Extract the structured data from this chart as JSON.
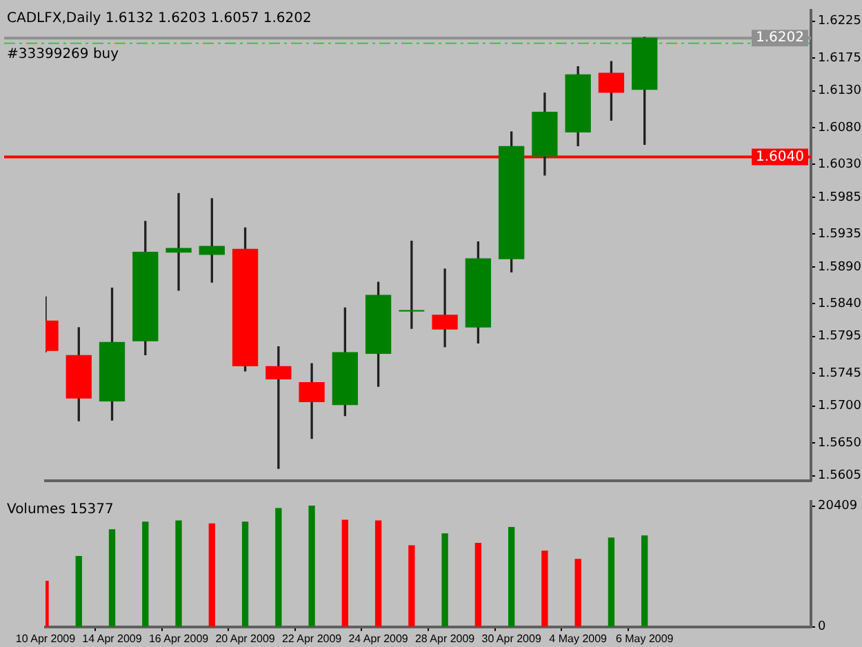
{
  "chart_data": [
    {
      "type": "candlestick",
      "title": "CADLFX,Daily 1.6132 1.6203 1.6057 1.6202",
      "categories": [
        null,
        null,
        null,
        null,
        null,
        null,
        null,
        null,
        null,
        null,
        null,
        null,
        null,
        null,
        null,
        null,
        null,
        null,
        null,
        null,
        null,
        null,
        null,
        null
      ],
      "ohlc": [
        [
          1.5816,
          1.5849,
          1.5774,
          1.5776
        ],
        [
          1.5769,
          1.5807,
          1.568,
          1.5711
        ],
        [
          1.5707,
          1.5861,
          1.5681,
          1.5787
        ],
        [
          1.5789,
          1.5952,
          1.577,
          1.591
        ],
        [
          1.591,
          1.599,
          1.5858,
          1.5915
        ],
        [
          1.5907,
          1.5983,
          1.5869,
          1.5918
        ],
        [
          1.5914,
          1.5943,
          1.5748,
          1.5755
        ],
        [
          1.5754,
          1.5781,
          1.5615,
          1.5737
        ],
        [
          1.5732,
          1.5758,
          1.5656,
          1.5706
        ],
        [
          1.5702,
          1.5834,
          1.5687,
          1.5773
        ],
        [
          1.5772,
          1.5869,
          1.5727,
          1.5851
        ],
        [
          1.583,
          1.5925,
          1.5806,
          1.583
        ],
        [
          1.5824,
          1.5887,
          1.5781,
          1.5805
        ],
        [
          1.5808,
          1.5924,
          1.5786,
          1.5901
        ],
        [
          1.5901,
          1.6074,
          1.5883,
          1.6054
        ],
        [
          1.6041,
          1.6127,
          1.6015,
          1.6101
        ],
        [
          1.6074,
          1.6163,
          1.6055,
          1.6152
        ],
        [
          1.6154,
          1.617,
          1.609,
          1.6128
        ],
        [
          1.6132,
          1.6203,
          1.6057,
          1.6202
        ],
        null,
        null,
        null,
        null,
        null
      ],
      "colors": [
        "#ff0000",
        "#ff0000",
        "#008000",
        "#008000",
        "#008000",
        "#008000",
        "#ff0000",
        "#ff0000",
        "#ff0000",
        "#008000",
        "#008000",
        "#008000",
        "#ff0000",
        "#008000",
        "#008000",
        "#008000",
        "#008000",
        "#ff0000",
        "#008000",
        null,
        null,
        null,
        null,
        null
      ],
      "ylim": [
        1.5598,
        1.624
      ],
      "yticks": [
        1.5605,
        {
          "value": 1.565,
          "label": "1.5650"
        },
        {
          "value": 1.57,
          "label": "1.5700"
        },
        1.5745,
        1.5795,
        {
          "value": 1.584,
          "label": "1.5840"
        },
        {
          "value": 1.589,
          "label": "1.5890"
        },
        1.5935,
        1.5985,
        {
          "value": 1.603,
          "label": "1.6030"
        },
        {
          "value": 1.608,
          "label": "1.6080"
        },
        {
          "value": 1.613,
          "label": "1.6130"
        },
        1.6175,
        1.6225
      ],
      "tick_labels": "y",
      "ref_lines": [
        {
          "axis": "y",
          "value": 1.6202,
          "label": "1.6202",
          "color": "#909090",
          "line_style": "solid"
        },
        {
          "axis": "y",
          "value": 1.6195,
          "label": "#33399269 buy",
          "color": "#33cc33",
          "line_style": "dashed"
        },
        {
          "axis": "y",
          "value": 1.604,
          "label": "1.6040",
          "color": "#ff0000",
          "line_style": "solid"
        }
      ]
    },
    {
      "type": "bar",
      "title": "Volumes 15377",
      "categories": [
        "10 Apr 2009",
        null,
        "14 Apr 2009",
        null,
        "16 Apr 2009",
        null,
        "20 Apr 2009",
        null,
        "22 Apr 2009",
        null,
        "24 Apr 2009",
        null,
        "28 Apr 2009",
        null,
        "30 Apr 2009",
        null,
        "4 May 2009",
        null,
        "6 May 2009",
        null,
        null,
        null,
        null,
        null
      ],
      "values": [
        7700,
        11900,
        16400,
        17700,
        17900,
        17400,
        17700,
        20000,
        20409,
        18000,
        17900,
        13700,
        15700,
        14100,
        16800,
        12800,
        11400,
        15000,
        15377,
        null,
        null,
        null,
        null,
        null
      ],
      "colors": [
        "#ff0000",
        "#008000",
        "#008000",
        "#008000",
        "#008000",
        "#ff0000",
        "#008000",
        "#008000",
        "#008000",
        "#ff0000",
        "#ff0000",
        "#ff0000",
        "#008000",
        "#ff0000",
        "#008000",
        "#ff0000",
        "#ff0000",
        "#008000",
        "#008000",
        null,
        null,
        null,
        null,
        null
      ],
      "ylim": [
        0,
        21200
      ],
      "yticks": [
        0,
        20409
      ]
    }
  ]
}
